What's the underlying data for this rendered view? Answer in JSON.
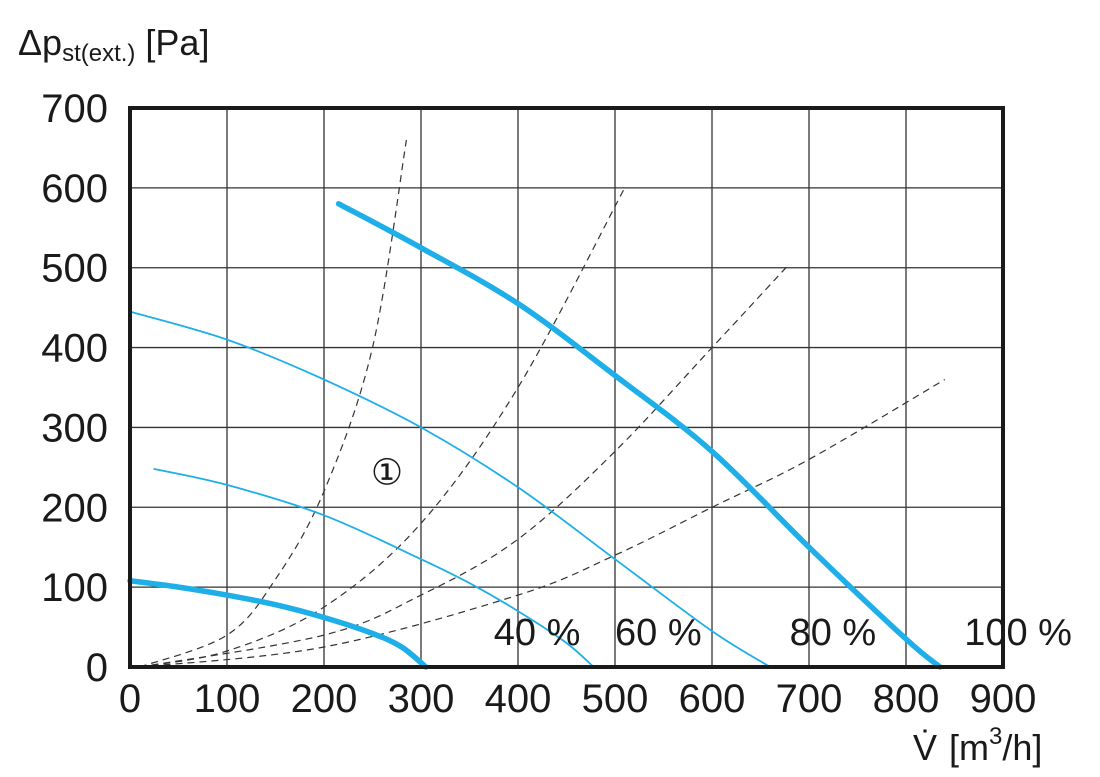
{
  "chart_data": {
    "type": "line",
    "ylabel_main": "Δp",
    "ylabel_sub": "st(ext.)",
    "ylabel_unit": "[Pa]",
    "xlabel_main": "V̇",
    "xlabel_unit_pre": "[m",
    "xlabel_unit_sup": "3",
    "xlabel_unit_post": "/h]",
    "xlim": [
      0,
      900
    ],
    "ylim": [
      0,
      700
    ],
    "x_ticks": [
      "0",
      "100",
      "200",
      "300",
      "400",
      "500",
      "600",
      "700",
      "800",
      "900"
    ],
    "y_ticks": [
      "0",
      "100",
      "200",
      "300",
      "400",
      "500",
      "600",
      "700"
    ],
    "grid": true,
    "colors": {
      "curve": "#1eaee8",
      "system": "#333333",
      "grid": "#333333"
    },
    "series": [
      {
        "label": "40 %",
        "style": "thick",
        "points": [
          [
            0,
            108
          ],
          [
            50,
            100
          ],
          [
            100,
            90
          ],
          [
            150,
            78
          ],
          [
            200,
            62
          ],
          [
            250,
            42
          ],
          [
            280,
            25
          ],
          [
            305,
            0
          ]
        ]
      },
      {
        "label": "60 %",
        "style": "thin",
        "points": [
          [
            25,
            248
          ],
          [
            100,
            228
          ],
          [
            200,
            190
          ],
          [
            300,
            135
          ],
          [
            350,
            105
          ],
          [
            400,
            70
          ],
          [
            450,
            30
          ],
          [
            478,
            0
          ]
        ]
      },
      {
        "label": "80 %",
        "style": "thin",
        "points": [
          [
            0,
            445
          ],
          [
            100,
            410
          ],
          [
            200,
            360
          ],
          [
            300,
            300
          ],
          [
            400,
            225
          ],
          [
            500,
            135
          ],
          [
            600,
            45
          ],
          [
            660,
            0
          ]
        ]
      },
      {
        "label": "100 %",
        "style": "thick",
        "points": [
          [
            215,
            580
          ],
          [
            300,
            525
          ],
          [
            400,
            455
          ],
          [
            500,
            365
          ],
          [
            600,
            270
          ],
          [
            700,
            150
          ],
          [
            800,
            35
          ],
          [
            835,
            0
          ]
        ]
      }
    ],
    "system_curves": [
      {
        "points": [
          [
            10,
            0
          ],
          [
            100,
            40
          ],
          [
            150,
            110
          ],
          [
            200,
            220
          ],
          [
            250,
            400
          ],
          [
            285,
            660
          ]
        ]
      },
      {
        "points": [
          [
            10,
            0
          ],
          [
            100,
            20
          ],
          [
            200,
            75
          ],
          [
            300,
            180
          ],
          [
            400,
            350
          ],
          [
            510,
            600
          ]
        ]
      },
      {
        "points": [
          [
            10,
            0
          ],
          [
            200,
            40
          ],
          [
            300,
            90
          ],
          [
            400,
            160
          ],
          [
            500,
            270
          ],
          [
            600,
            400
          ],
          [
            680,
            505
          ]
        ]
      },
      {
        "points": [
          [
            10,
            0
          ],
          [
            200,
            25
          ],
          [
            400,
            90
          ],
          [
            500,
            140
          ],
          [
            600,
            200
          ],
          [
            700,
            260
          ],
          [
            840,
            360
          ]
        ]
      }
    ],
    "pct_labels": [
      {
        "text": "40 %",
        "x": 375
      },
      {
        "text": "60 %",
        "x": 500
      },
      {
        "text": "80 %",
        "x": 680
      },
      {
        "text": "100 %",
        "x": 860
      }
    ],
    "annotation": {
      "text": "①",
      "x": 265,
      "y": 245
    }
  }
}
